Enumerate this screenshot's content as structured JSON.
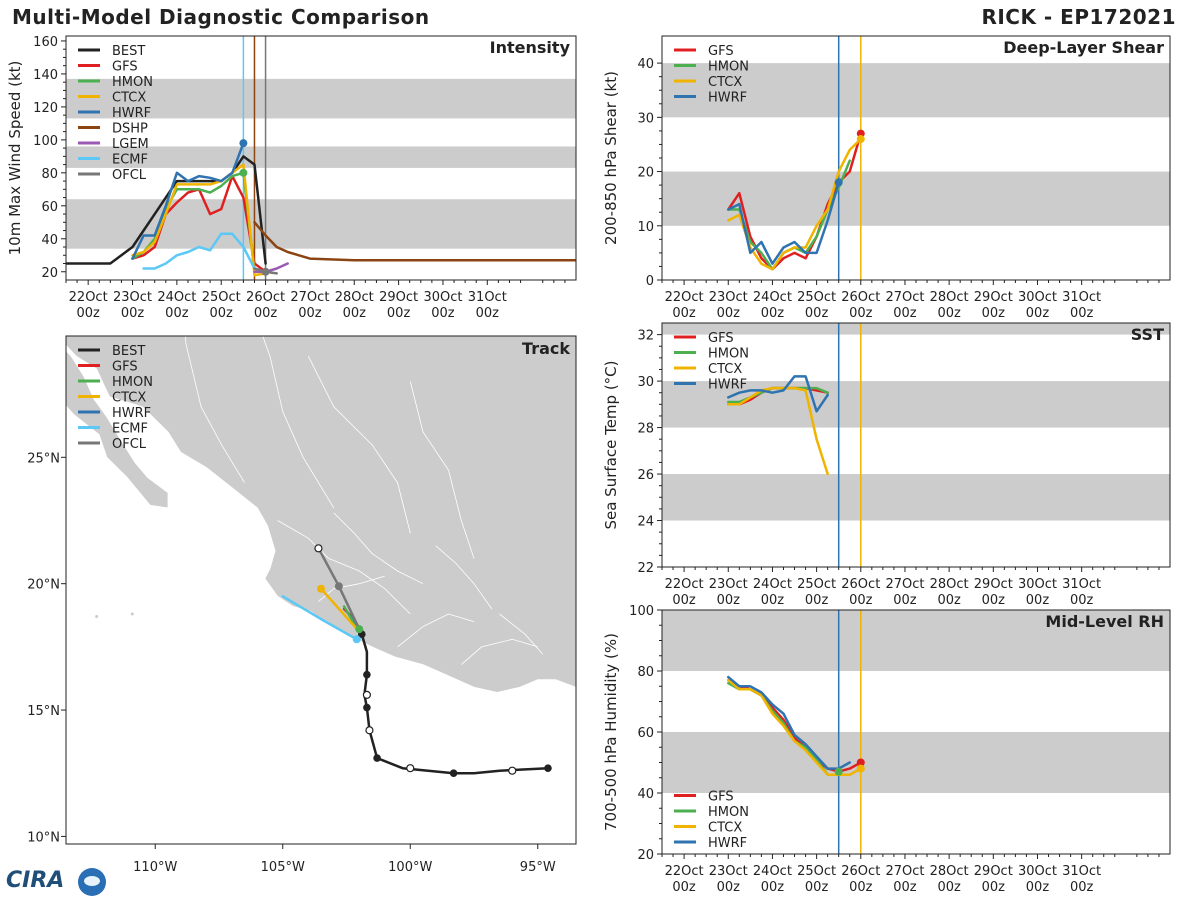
{
  "header": {
    "title": "Multi-Model Diagnostic Comparison",
    "storm": "RICK - EP172021"
  },
  "logo_text": "CIRA",
  "colors": {
    "BEST": "#222222",
    "GFS": "#e02020",
    "HMON": "#4caf50",
    "CTCX": "#f0b400",
    "HWRF": "#2f73b0",
    "DSHP": "#8b4513",
    "LGEM": "#9b59b6",
    "ECMF": "#5bc8f5",
    "OFCL": "#777777",
    "band": "#cccccc",
    "land": "#cccccc",
    "ocean": "#ffffff"
  },
  "time_axis": {
    "hours_range": [
      -36,
      240
    ],
    "ticks": [
      {
        "h": -24,
        "day": "22Oct",
        "z": "00z"
      },
      {
        "h": 0,
        "day": "23Oct",
        "z": "00z"
      },
      {
        "h": 24,
        "day": "24Oct",
        "z": "00z"
      },
      {
        "h": 48,
        "day": "25Oct",
        "z": "00z"
      },
      {
        "h": 72,
        "day": "26Oct",
        "z": "00z"
      },
      {
        "h": 96,
        "day": "27Oct",
        "z": "00z"
      },
      {
        "h": 120,
        "day": "28Oct",
        "z": "00z"
      },
      {
        "h": 144,
        "day": "29Oct",
        "z": "00z"
      },
      {
        "h": 168,
        "day": "30Oct",
        "z": "00z"
      },
      {
        "h": 192,
        "day": "31Oct",
        "z": "00z"
      }
    ]
  },
  "chart_data": [
    {
      "id": "intensity",
      "type": "line",
      "title": "Intensity",
      "ylabel": "10m Max Wind Speed (kt)",
      "ylim": [
        15,
        163
      ],
      "yticks": [
        20,
        40,
        60,
        80,
        100,
        120,
        140,
        160
      ],
      "bands": [
        [
          34,
          64
        ],
        [
          83,
          96
        ],
        [
          113,
          137
        ]
      ],
      "vlines": [
        {
          "h": 60,
          "color": "#5bc8f5"
        },
        {
          "h": 66,
          "color": "#8b4513"
        },
        {
          "h": 72,
          "color": "#777777"
        }
      ],
      "legend": [
        "BEST",
        "GFS",
        "HMON",
        "CTCX",
        "HWRF",
        "DSHP",
        "LGEM",
        "ECMF",
        "OFCL"
      ],
      "series": [
        {
          "name": "BEST",
          "x": [
            -36,
            -30,
            -24,
            -18,
            -12,
            -6,
            0,
            6,
            12,
            18,
            24,
            30,
            36,
            42,
            48,
            54,
            60,
            66,
            72
          ],
          "y": [
            25,
            25,
            25,
            25,
            25,
            30,
            35,
            45,
            55,
            65,
            75,
            75,
            75,
            75,
            75,
            80,
            90,
            85,
            25
          ],
          "markers": false
        },
        {
          "name": "GFS",
          "x": [
            0,
            6,
            12,
            18,
            24,
            30,
            36,
            42,
            48,
            54,
            60,
            66,
            72
          ],
          "y": [
            28,
            30,
            35,
            55,
            62,
            68,
            70,
            55,
            58,
            78,
            65,
            25,
            20
          ],
          "markers": false
        },
        {
          "name": "HMON",
          "x": [
            0,
            6,
            12,
            18,
            24,
            30,
            36,
            42,
            48,
            54,
            60,
            66
          ],
          "y": [
            28,
            32,
            40,
            58,
            70,
            70,
            70,
            68,
            72,
            78,
            80,
            20
          ],
          "markers": false
        },
        {
          "name": "CTCX",
          "x": [
            0,
            6,
            12,
            18,
            24,
            30,
            36,
            42,
            48,
            54,
            60,
            66,
            72
          ],
          "y": [
            30,
            32,
            38,
            55,
            73,
            73,
            73,
            73,
            75,
            80,
            85,
            18,
            19
          ],
          "markers": false
        },
        {
          "name": "HWRF",
          "x": [
            0,
            6,
            12,
            18,
            24,
            30,
            36,
            42,
            48,
            54,
            60
          ],
          "y": [
            28,
            42,
            42,
            60,
            80,
            75,
            78,
            77,
            75,
            80,
            98
          ],
          "markers": false
        },
        {
          "name": "DSHP",
          "x": [
            66,
            72,
            78,
            84,
            96,
            120,
            144,
            168,
            192,
            204,
            240
          ],
          "y": [
            50,
            42,
            35,
            32,
            28,
            27,
            27,
            27,
            27,
            27,
            27
          ],
          "markers": false
        },
        {
          "name": "LGEM",
          "x": [
            66,
            72,
            78,
            84
          ],
          "y": [
            20,
            20,
            22,
            25
          ],
          "markers": false
        },
        {
          "name": "ECMF",
          "x": [
            6,
            12,
            18,
            24,
            30,
            36,
            42,
            48,
            54,
            60,
            66
          ],
          "y": [
            22,
            22,
            25,
            30,
            32,
            35,
            33,
            43,
            43,
            35,
            22
          ],
          "markers": false
        },
        {
          "name": "OFCL",
          "x": [
            66,
            72,
            78
          ],
          "y": [
            22,
            20,
            19
          ],
          "markers": false
        }
      ],
      "points": [
        {
          "h": 60,
          "v": 98,
          "color": "#2f73b0"
        },
        {
          "h": 60,
          "v": 80,
          "color": "#4caf50"
        },
        {
          "h": 72,
          "v": 20,
          "color": "#777777"
        }
      ]
    },
    {
      "id": "shear",
      "type": "line",
      "title": "Deep-Layer Shear",
      "ylabel": "200-850 hPa Shear (kt)",
      "ylim": [
        0,
        45
      ],
      "yticks": [
        0,
        10,
        20,
        30,
        40
      ],
      "bands": [
        [
          10,
          20
        ],
        [
          30,
          40
        ]
      ],
      "vlines": [
        {
          "h": 60,
          "color": "#2f73b0"
        },
        {
          "h": 72,
          "color": "#f0b400"
        }
      ],
      "legend": [
        "GFS",
        "HMON",
        "CTCX",
        "HWRF"
      ],
      "series": [
        {
          "name": "GFS",
          "x": [
            0,
            6,
            12,
            18,
            24,
            30,
            36,
            42,
            48,
            54,
            60,
            66,
            72
          ],
          "y": [
            13,
            16,
            8,
            4,
            2,
            4,
            5,
            4,
            8,
            14,
            18,
            20,
            27
          ]
        },
        {
          "name": "HMON",
          "x": [
            0,
            6,
            12,
            18,
            24,
            30,
            36,
            42,
            48,
            54,
            60,
            66
          ],
          "y": [
            13,
            13,
            7,
            5,
            2,
            5,
            6,
            5,
            8,
            13,
            17,
            22
          ]
        },
        {
          "name": "CTCX",
          "x": [
            0,
            6,
            12,
            18,
            24,
            30,
            36,
            42,
            48,
            54,
            60,
            66,
            72
          ],
          "y": [
            11,
            12,
            6,
            3,
            2,
            5,
            6,
            6,
            10,
            13,
            20,
            24,
            26
          ]
        },
        {
          "name": "HWRF",
          "x": [
            0,
            6,
            12,
            18,
            24,
            30,
            36,
            42,
            48,
            54,
            60
          ],
          "y": [
            13,
            14,
            5,
            7,
            3,
            6,
            7,
            5,
            5,
            11,
            18
          ]
        }
      ],
      "points": [
        {
          "h": 72,
          "v": 27,
          "color": "#e02020"
        },
        {
          "h": 72,
          "v": 26,
          "color": "#f0b400"
        },
        {
          "h": 60,
          "v": 18,
          "color": "#2f73b0"
        }
      ]
    },
    {
      "id": "sst",
      "type": "line",
      "title": "SST",
      "ylabel": "Sea Surface Temp (°C)",
      "ylim": [
        22,
        32.5
      ],
      "yticks": [
        22,
        24,
        26,
        28,
        30,
        32
      ],
      "bands": [
        [
          24,
          26
        ],
        [
          28,
          30
        ],
        [
          32,
          34
        ]
      ],
      "vlines": [
        {
          "h": 60,
          "color": "#2f73b0"
        },
        {
          "h": 72,
          "color": "#f0b400"
        }
      ],
      "legend": [
        "GFS",
        "HMON",
        "CTCX",
        "HWRF"
      ],
      "series": [
        {
          "name": "GFS",
          "x": [
            0,
            6,
            12,
            18,
            24,
            30,
            36,
            42,
            48,
            54
          ],
          "y": [
            29.0,
            29.0,
            29.2,
            29.5,
            29.7,
            29.7,
            29.7,
            29.7,
            29.6,
            29.5
          ]
        },
        {
          "name": "HMON",
          "x": [
            0,
            6,
            12,
            18,
            24,
            30,
            36,
            42,
            48,
            54
          ],
          "y": [
            29.1,
            29.1,
            29.3,
            29.5,
            29.7,
            29.7,
            29.7,
            29.7,
            29.7,
            29.5
          ]
        },
        {
          "name": "CTCX",
          "x": [
            0,
            6,
            12,
            18,
            24,
            30,
            36,
            42,
            48,
            54
          ],
          "y": [
            29.0,
            29.0,
            29.3,
            29.6,
            29.7,
            29.7,
            29.7,
            29.6,
            27.5,
            26.0
          ]
        },
        {
          "name": "HWRF",
          "x": [
            0,
            6,
            12,
            18,
            24,
            30,
            36,
            42,
            48,
            54
          ],
          "y": [
            29.3,
            29.5,
            29.6,
            29.6,
            29.5,
            29.6,
            30.2,
            30.2,
            28.7,
            29.4
          ]
        }
      ],
      "points": []
    },
    {
      "id": "rh",
      "type": "line",
      "title": "Mid-Level RH",
      "ylabel": "700-500 hPa Humidity (%)",
      "ylim": [
        20,
        100
      ],
      "yticks": [
        20,
        40,
        60,
        80,
        100
      ],
      "bands": [
        [
          40,
          60
        ],
        [
          80,
          100
        ]
      ],
      "vlines": [
        {
          "h": 60,
          "color": "#2f73b0"
        },
        {
          "h": 72,
          "color": "#f0b400"
        }
      ],
      "legend": [
        "GFS",
        "HMON",
        "CTCX",
        "HWRF"
      ],
      "legend_position": "bottom-left",
      "series": [
        {
          "name": "GFS",
          "x": [
            0,
            6,
            12,
            18,
            24,
            30,
            36,
            42,
            48,
            54,
            60,
            66,
            72
          ],
          "y": [
            77,
            75,
            74,
            72,
            68,
            64,
            58,
            55,
            51,
            48,
            47,
            48,
            50
          ]
        },
        {
          "name": "HMON",
          "x": [
            0,
            6,
            12,
            18,
            24,
            30,
            36,
            42,
            48,
            54,
            60,
            66
          ],
          "y": [
            76,
            74,
            74,
            72,
            67,
            63,
            57,
            55,
            51,
            46,
            46,
            46
          ]
        },
        {
          "name": "CTCX",
          "x": [
            0,
            6,
            12,
            18,
            24,
            30,
            36,
            42,
            48,
            54,
            60,
            66,
            72
          ],
          "y": [
            77,
            74,
            74,
            72,
            66,
            62,
            57,
            54,
            50,
            46,
            46,
            46,
            48
          ]
        },
        {
          "name": "HWRF",
          "x": [
            0,
            6,
            12,
            18,
            24,
            30,
            36,
            42,
            48,
            54,
            60,
            66
          ],
          "y": [
            78,
            75,
            75,
            73,
            69,
            66,
            59,
            56,
            52,
            48,
            48,
            50
          ]
        }
      ],
      "points": [
        {
          "h": 72,
          "v": 50,
          "color": "#e02020"
        },
        {
          "h": 72,
          "v": 48,
          "color": "#f0b400"
        },
        {
          "h": 60,
          "v": 47,
          "color": "#4caf50"
        }
      ]
    },
    {
      "id": "track",
      "type": "map",
      "title": "Track",
      "lon_range": [
        -113.5,
        -93.5
      ],
      "lat_range": [
        9.7,
        29.8
      ],
      "xticks": [
        {
          "v": -110,
          "label": "110°W"
        },
        {
          "v": -105,
          "label": "105°W"
        },
        {
          "v": -100,
          "label": "100°W"
        },
        {
          "v": -95,
          "label": "95°W"
        }
      ],
      "yticks": [
        {
          "v": 10,
          "label": "10°N"
        },
        {
          "v": 15,
          "label": "15°N"
        },
        {
          "v": 20,
          "label": "20°N"
        },
        {
          "v": 25,
          "label": "25°N"
        }
      ],
      "legend": [
        "BEST",
        "GFS",
        "HMON",
        "CTCX",
        "HWRF",
        "ECMF",
        "OFCL"
      ],
      "series": [
        {
          "name": "BEST",
          "lon": [
            -94.6,
            -96.5,
            -97.5,
            -98.3,
            -99.3,
            -100.3,
            -101.3,
            -101.6,
            -101.7,
            -101.8,
            -101.7,
            -101.7,
            -101.9,
            -102.0
          ],
          "lat": [
            12.7,
            12.6,
            12.5,
            12.5,
            12.6,
            12.7,
            13.1,
            14.2,
            15.1,
            15.6,
            16.4,
            17.3,
            18.0,
            18.2
          ]
        },
        {
          "name": "GFS",
          "lon": [
            -101.9,
            -102.3,
            -102.6
          ],
          "lat": [
            18.1,
            18.7,
            19.0
          ]
        },
        {
          "name": "HMON",
          "lon": [
            -102.0,
            -102.3,
            -102.6
          ],
          "lat": [
            18.1,
            18.6,
            19.1
          ]
        },
        {
          "name": "CTCX",
          "lon": [
            -102.0,
            -103.5
          ],
          "lat": [
            18.1,
            19.8
          ]
        },
        {
          "name": "HWRF",
          "lon": [
            -102.0,
            -102.3
          ],
          "lat": [
            18.2,
            18.8
          ]
        },
        {
          "name": "ECMF",
          "lon": [
            -102.1,
            -103.5,
            -105.0
          ],
          "lat": [
            17.8,
            18.6,
            19.5
          ]
        },
        {
          "name": "OFCL",
          "lon": [
            -102.0,
            -102.8,
            -103.6
          ],
          "lat": [
            18.2,
            19.9,
            21.4
          ]
        }
      ],
      "best_filled": [
        {
          "lon": -94.6,
          "lat": 12.7
        },
        {
          "lon": -98.3,
          "lat": 12.5
        },
        {
          "lon": -101.3,
          "lat": 13.1
        },
        {
          "lon": -101.7,
          "lat": 15.1
        },
        {
          "lon": -101.7,
          "lat": 16.4
        },
        {
          "lon": -101.9,
          "lat": 18.0
        }
      ],
      "best_open": [
        {
          "lon": -96.0,
          "lat": 12.6
        },
        {
          "lon": -100.0,
          "lat": 12.7
        },
        {
          "lon": -101.6,
          "lat": 14.2
        },
        {
          "lon": -101.7,
          "lat": 15.6
        }
      ],
      "other_points": [
        {
          "lon": -103.5,
          "lat": 19.8,
          "color": "#f0b400",
          "open": false
        },
        {
          "lon": -102.8,
          "lat": 19.9,
          "color": "#777777",
          "open": false
        },
        {
          "lon": -103.6,
          "lat": 21.4,
          "color": "#777777",
          "open": true
        },
        {
          "lon": -102.0,
          "lat": 18.2,
          "color": "#4caf50",
          "open": false
        },
        {
          "lon": -102.1,
          "lat": 17.8,
          "color": "#5bc8f5",
          "open": false
        }
      ]
    }
  ]
}
